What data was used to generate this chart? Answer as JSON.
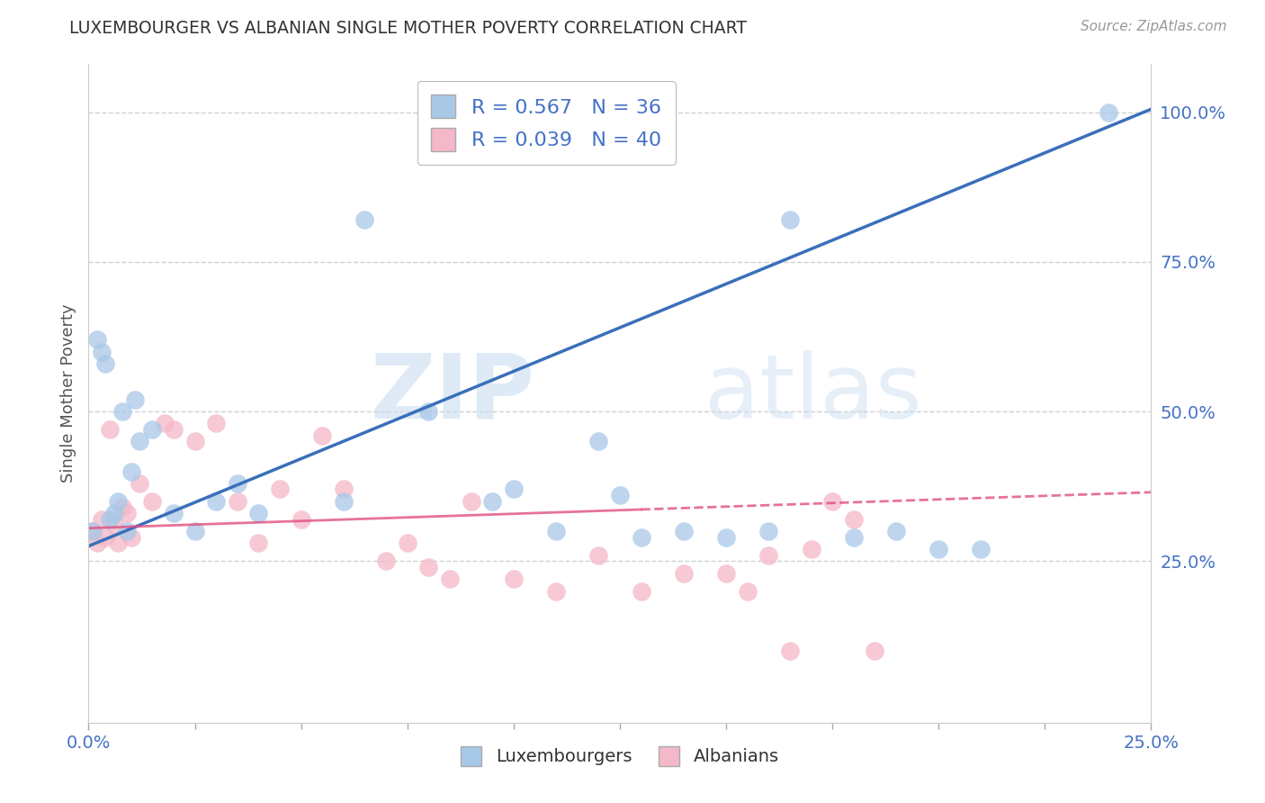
{
  "title": "LUXEMBOURGER VS ALBANIAN SINGLE MOTHER POVERTY CORRELATION CHART",
  "source": "Source: ZipAtlas.com",
  "ylabel": "Single Mother Poverty",
  "xlim": [
    0.0,
    0.25
  ],
  "ylim": [
    -0.02,
    1.08
  ],
  "lux_color": "#a8c8e8",
  "alb_color": "#f4b8c8",
  "lux_line_color": "#3a6fba",
  "alb_line_color": "#e05080",
  "lux_R": 0.567,
  "lux_N": 36,
  "alb_R": 0.039,
  "alb_N": 40,
  "watermark_zip": "ZIP",
  "watermark_atlas": "atlas",
  "background_color": "#ffffff",
  "grid_color": "#d0d0d0",
  "lux_scatter_x": [
    0.001,
    0.002,
    0.003,
    0.004,
    0.005,
    0.006,
    0.007,
    0.008,
    0.009,
    0.01,
    0.011,
    0.012,
    0.015,
    0.02,
    0.025,
    0.03,
    0.035,
    0.04,
    0.06,
    0.065,
    0.08,
    0.095,
    0.1,
    0.11,
    0.12,
    0.125,
    0.13,
    0.14,
    0.15,
    0.16,
    0.165,
    0.18,
    0.19,
    0.2,
    0.21,
    0.24
  ],
  "lux_scatter_y": [
    0.3,
    0.62,
    0.6,
    0.58,
    0.32,
    0.33,
    0.35,
    0.5,
    0.3,
    0.4,
    0.52,
    0.45,
    0.47,
    0.33,
    0.3,
    0.35,
    0.38,
    0.33,
    0.35,
    0.82,
    0.5,
    0.35,
    0.37,
    0.3,
    0.45,
    0.36,
    0.29,
    0.3,
    0.29,
    0.3,
    0.82,
    0.29,
    0.3,
    0.27,
    0.27,
    1.0
  ],
  "alb_scatter_x": [
    0.001,
    0.002,
    0.003,
    0.004,
    0.005,
    0.006,
    0.007,
    0.008,
    0.009,
    0.01,
    0.012,
    0.015,
    0.018,
    0.02,
    0.025,
    0.03,
    0.035,
    0.04,
    0.045,
    0.05,
    0.055,
    0.06,
    0.07,
    0.075,
    0.08,
    0.085,
    0.09,
    0.1,
    0.11,
    0.12,
    0.13,
    0.14,
    0.15,
    0.155,
    0.16,
    0.165,
    0.17,
    0.175,
    0.18,
    0.185
  ],
  "alb_scatter_y": [
    0.3,
    0.28,
    0.32,
    0.29,
    0.47,
    0.31,
    0.28,
    0.34,
    0.33,
    0.29,
    0.38,
    0.35,
    0.48,
    0.47,
    0.45,
    0.48,
    0.35,
    0.28,
    0.37,
    0.32,
    0.46,
    0.37,
    0.25,
    0.28,
    0.24,
    0.22,
    0.35,
    0.22,
    0.2,
    0.26,
    0.2,
    0.23,
    0.23,
    0.2,
    0.26,
    0.1,
    0.27,
    0.35,
    0.32,
    0.1
  ],
  "lux_line_x0": 0.0,
  "lux_line_y0": 0.275,
  "lux_line_x1": 0.25,
  "lux_line_y1": 1.005,
  "alb_line_x0": 0.0,
  "alb_line_y0": 0.305,
  "alb_line_x1": 0.25,
  "alb_line_y1": 0.365,
  "yticks_right": [
    0.25,
    0.5,
    0.75,
    1.0
  ],
  "ytick_right_labels": [
    "25.0%",
    "50.0%",
    "75.0%",
    "100.0%"
  ]
}
